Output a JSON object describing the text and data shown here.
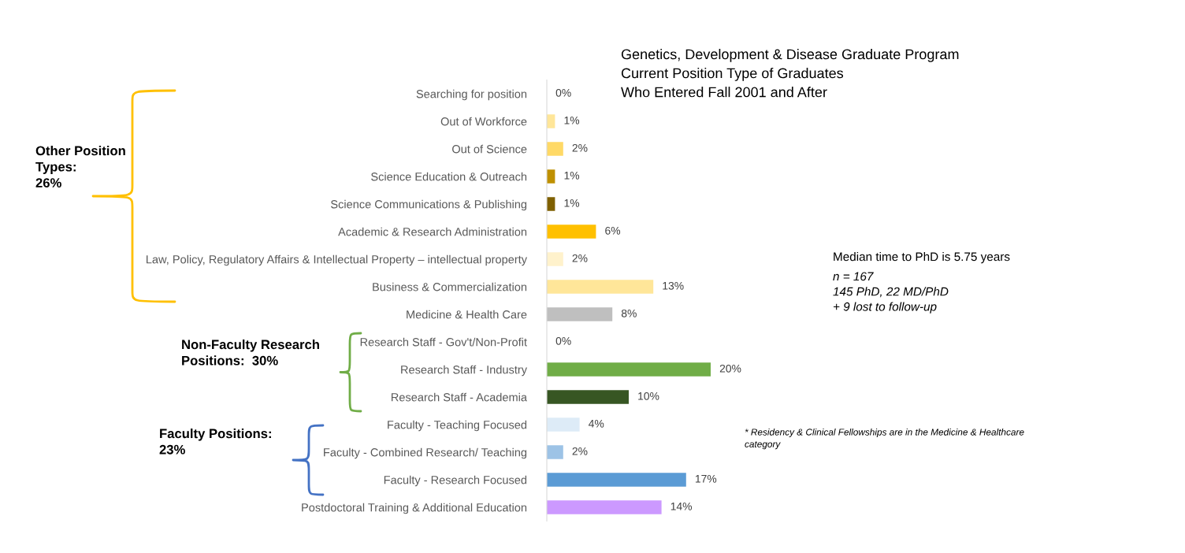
{
  "chart_data": {
    "type": "bar",
    "orientation": "horizontal",
    "title": "Genetics, Development & Disease Graduate Program\nCurrent Position Type of Graduates\nWho Entered Fall 2001 and After",
    "categories": [
      "Searching for position",
      "Out of Workforce",
      "Out of Science",
      "Science Education & Outreach",
      "Science Communications & Publishing",
      "Academic & Research Administration",
      "Law, Policy, Regulatory Affairs & Intellectual Property – intellectual property",
      "Business & Commercialization",
      "Medicine & Health Care",
      "Research Staff - Gov't/Non-Profit",
      "Research Staff - Industry",
      "Research Staff - Academia",
      "Faculty - Teaching Focused",
      "Faculty - Combined Research/ Teaching",
      "Faculty - Research Focused",
      "Postdoctoral Training & Additional Education"
    ],
    "values": [
      0,
      1,
      2,
      1,
      1,
      6,
      2,
      13,
      8,
      0,
      20,
      10,
      4,
      2,
      17,
      14
    ],
    "value_labels": [
      "0%",
      "1%",
      "2%",
      "1%",
      "1%",
      "6%",
      "2%",
      "13%",
      "8%",
      "0%",
      "20%",
      "10%",
      "4%",
      "2%",
      "17%",
      "14%"
    ],
    "colors": [
      "#ffe699",
      "#ffe699",
      "#ffd966",
      "#bf9000",
      "#7f6000",
      "#ffc000",
      "#fff2cc",
      "#ffe699",
      "#bfbfbf",
      "#70ad47",
      "#70ad47",
      "#375623",
      "#ddebf7",
      "#9dc3e6",
      "#5b9bd5",
      "#cc99ff"
    ],
    "tick_labels": "y",
    "grid": false,
    "annotations": [
      "Other Position\nTypes:\n26%",
      "Non-Faculty Research\nPositions:  30%",
      "Faculty Positions:\n23%",
      "Median time to PhD is 5.75 years",
      "n = 167\n145 PhD, 22 MD/PhD\n+ 9 lost to follow-up",
      "* Residency & Clinical Fellowships are in the Medicine & Healthcare\ncategory"
    ]
  }
}
